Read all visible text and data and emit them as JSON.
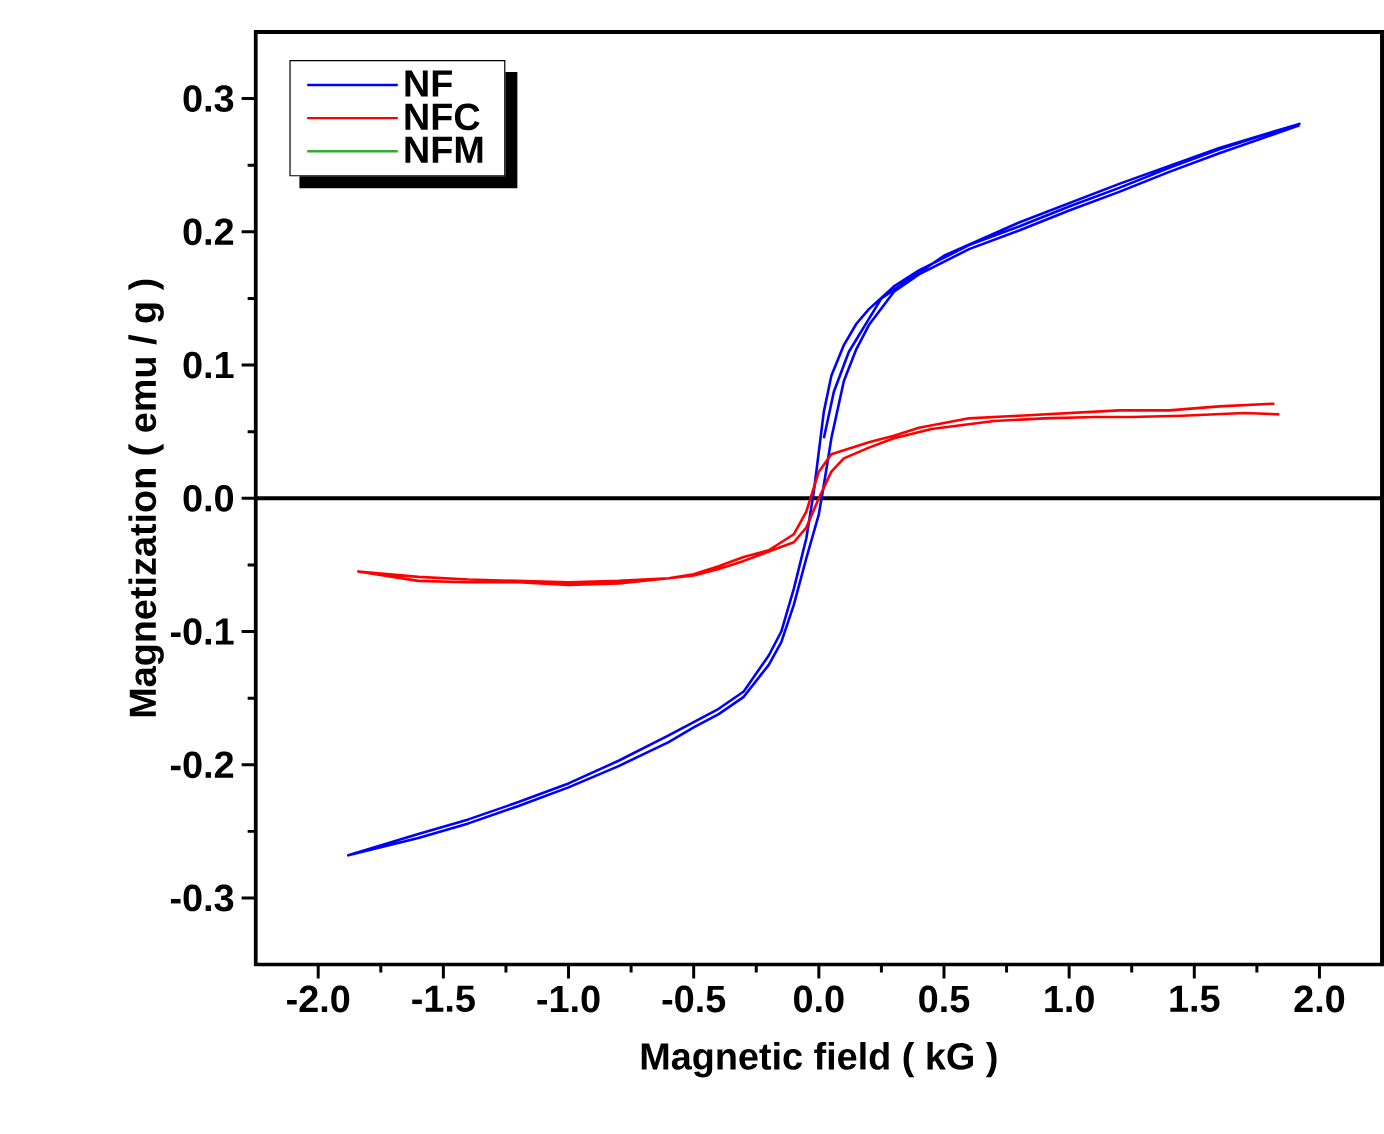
{
  "chart_data": {
    "type": "line",
    "xlabel": "Magnetic field ( kG )",
    "ylabel": "Magnetization  ( emu / g )",
    "xlim": [
      -2.25,
      2.25
    ],
    "ylim": [
      -0.35,
      0.35
    ],
    "xticks": [
      {
        "value": -2,
        "label": "-2.0"
      },
      {
        "value": -1.5,
        "label": "-1.5"
      },
      {
        "value": -1,
        "label": "-1.0"
      },
      {
        "value": -0.5,
        "label": "-0.5"
      },
      {
        "value": 0,
        "label": "0.0"
      },
      {
        "value": 0.5,
        "label": "0.5"
      },
      {
        "value": 1,
        "label": "1.0"
      },
      {
        "value": 1.5,
        "label": "1.5"
      },
      {
        "value": 2,
        "label": "2.0"
      }
    ],
    "yticks": [
      {
        "value": -0.3,
        "label": "-0.3"
      },
      {
        "value": -0.2,
        "label": "-0.2"
      },
      {
        "value": -0.1,
        "label": "-0.1"
      },
      {
        "value": 0,
        "label": "0.0"
      },
      {
        "value": 0.1,
        "label": "0.1"
      },
      {
        "value": 0.2,
        "label": "0.2"
      },
      {
        "value": 0.3,
        "label": "0.3"
      }
    ],
    "legend": "top left",
    "grid": false,
    "marker": "none",
    "line_style": "solid",
    "ref_lines": [
      {
        "axis": "y",
        "value": 0,
        "color": "#000000"
      }
    ],
    "series": [
      {
        "name": "NF",
        "color": "#0000ff",
        "x": [
          0.02,
          0.06,
          0.12,
          0.25,
          0.5,
          0.8,
          1.2,
          1.6,
          1.92,
          1.8,
          1.6,
          1.4,
          1.2,
          1.0,
          0.8,
          0.6,
          0.4,
          0.3,
          0.2,
          0.15,
          0.1,
          0.05,
          0.02,
          0.0,
          -0.02,
          -0.05,
          -0.1,
          -0.15,
          -0.2,
          -0.3,
          -0.4,
          -0.5,
          -0.6,
          -0.8,
          -1.0,
          -1.2,
          -1.4,
          -1.6,
          -1.88,
          -1.6,
          -1.4,
          -1.2,
          -1.0,
          -0.8,
          -0.6,
          -0.5,
          -0.4,
          -0.3,
          -0.2,
          -0.15,
          -0.1,
          -0.05,
          0.0,
          0.02,
          0.05,
          0.1,
          0.15,
          0.2,
          0.3,
          0.4,
          0.6,
          0.8,
          1.0,
          1.2,
          1.4,
          1.6,
          1.8,
          1.92
        ],
        "values": [
          0.045,
          0.08,
          0.11,
          0.15,
          0.182,
          0.207,
          0.236,
          0.263,
          0.281,
          0.274,
          0.262,
          0.248,
          0.233,
          0.219,
          0.204,
          0.19,
          0.171,
          0.159,
          0.142,
          0.131,
          0.115,
          0.092,
          0.065,
          0.035,
          0.005,
          -0.03,
          -0.068,
          -0.1,
          -0.118,
          -0.145,
          -0.158,
          -0.168,
          -0.178,
          -0.197,
          -0.214,
          -0.228,
          -0.241,
          -0.252,
          -0.268,
          -0.255,
          -0.244,
          -0.231,
          -0.217,
          -0.201,
          -0.183,
          -0.172,
          -0.162,
          -0.149,
          -0.125,
          -0.108,
          -0.08,
          -0.045,
          -0.012,
          0.01,
          0.045,
          0.088,
          0.112,
          0.13,
          0.155,
          0.168,
          0.187,
          0.201,
          0.216,
          0.23,
          0.245,
          0.259,
          0.272,
          0.28
        ]
      },
      {
        "name": "NFC",
        "color": "#ff0000",
        "x": [
          1.82,
          1.6,
          1.4,
          1.2,
          1.0,
          0.8,
          0.6,
          0.4,
          0.3,
          0.2,
          0.1,
          0.05,
          0.0,
          -0.05,
          -0.1,
          -0.2,
          -0.3,
          -0.4,
          -0.5,
          -0.6,
          -0.8,
          -1.0,
          -1.2,
          -1.4,
          -1.6,
          -1.84,
          -1.6,
          -1.4,
          -1.2,
          -1.0,
          -0.8,
          -0.6,
          -0.5,
          -0.4,
          -0.3,
          -0.2,
          -0.1,
          -0.05,
          0.0,
          0.05,
          0.1,
          0.2,
          0.3,
          0.45,
          0.7,
          0.9,
          1.1,
          1.25,
          1.45,
          1.7,
          1.84
        ],
        "values": [
          0.071,
          0.069,
          0.066,
          0.066,
          0.064,
          0.062,
          0.06,
          0.053,
          0.047,
          0.042,
          0.036,
          0.033,
          0.02,
          -0.01,
          -0.027,
          -0.039,
          -0.044,
          -0.051,
          -0.057,
          -0.06,
          -0.062,
          -0.063,
          -0.062,
          -0.061,
          -0.059,
          -0.055,
          -0.062,
          -0.063,
          -0.063,
          -0.065,
          -0.064,
          -0.06,
          -0.058,
          -0.053,
          -0.047,
          -0.04,
          -0.033,
          -0.022,
          0.0,
          0.02,
          0.03,
          0.038,
          0.045,
          0.052,
          0.058,
          0.06,
          0.061,
          0.061,
          0.062,
          0.064,
          0.063
        ]
      },
      {
        "name": "NFM",
        "color": "#33aa33"
      }
    ]
  }
}
